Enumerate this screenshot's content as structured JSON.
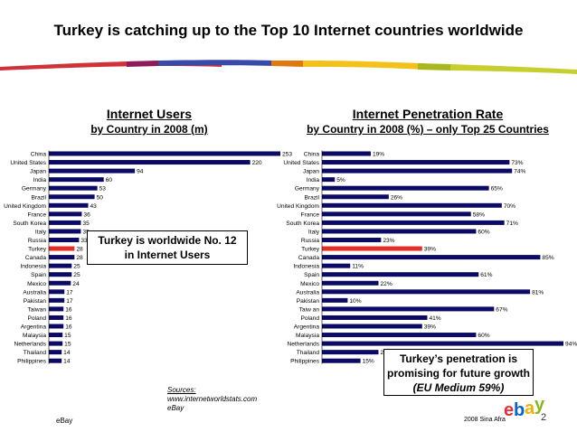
{
  "title": "Turkey is catching up to the Top 10 Internet countries worldwide",
  "colors": {
    "bar": "#0b0b66",
    "highlight": "#e52d27",
    "logo_red": "#e53238",
    "logo_blue": "#0064d2",
    "logo_yellow": "#f5af02",
    "logo_green": "#86b817"
  },
  "chart_data": [
    {
      "type": "bar",
      "orientation": "horizontal",
      "title": "Internet Users",
      "subtitle": "by Country in 2008 (m)",
      "categories": [
        "China",
        "United States",
        "Japan",
        "India",
        "Germany",
        "Brazil",
        "United Kingdom",
        "France",
        "South Korea",
        "Italy",
        "Russia",
        "Turkey",
        "Canada",
        "Indonesia",
        "Spain",
        "Mexico",
        "Australia",
        "Pakistan",
        "Taiwan",
        "Poland",
        "Argentina",
        "Malaysia",
        "Netherlands",
        "Thailand",
        "Philippines"
      ],
      "values": [
        253,
        220,
        94,
        60,
        53,
        50,
        43,
        36,
        35,
        35,
        33,
        28,
        28,
        25,
        25,
        24,
        17,
        17,
        16,
        16,
        16,
        15,
        15,
        14,
        14
      ],
      "labels": [
        "253",
        "220",
        "94",
        "60",
        "53",
        "50",
        "43",
        "36",
        "35",
        "35",
        "33",
        "28",
        "28",
        "25",
        "25",
        "24",
        "17",
        "17",
        "16",
        "16",
        "16",
        "15",
        "15",
        "14",
        "14"
      ],
      "highlight": "Turkey",
      "xlim": [
        0,
        253
      ]
    },
    {
      "type": "bar",
      "orientation": "horizontal",
      "title": "Internet Penetration Rate",
      "subtitle": "by Country in 2008 (%) – only Top 25 Countries",
      "categories": [
        "China",
        "United States",
        "Japan",
        "India",
        "Germany",
        "Brazil",
        "United Kingdom",
        "France",
        "South Korea",
        "Italy",
        "Russia",
        "Turkey",
        "Canada",
        "Indonesia",
        "Spain",
        "Mexico",
        "Australia",
        "Pakistan",
        "Taiw an",
        "Poland",
        "Argentina",
        "Malaysia",
        "Netherlands",
        "Thailand",
        "Philippines"
      ],
      "values": [
        19,
        73,
        74,
        5,
        65,
        26,
        70,
        58,
        71,
        60,
        23,
        39,
        85,
        11,
        61,
        22,
        81,
        10,
        67,
        41,
        39,
        60,
        94,
        22,
        15
      ],
      "labels": [
        "19%",
        "73%",
        "74%",
        "5%",
        "65%",
        "26%",
        "70%",
        "58%",
        "71%",
        "60%",
        "23%",
        "39%",
        "85%",
        "11%",
        "61%",
        "22%",
        "81%",
        "10%",
        "67%",
        "41%",
        "39%",
        "60%",
        "94%",
        "22%",
        "15%"
      ],
      "highlight": "Turkey",
      "xlim": [
        0,
        94
      ]
    }
  ],
  "callout_left": {
    "line1": "Turkey is worldwide No. 12",
    "line2": "in Internet Users"
  },
  "callout_right": {
    "line1": "Turkey’s penetration is",
    "line2": "promising for future growth",
    "line3": "(EU Medium 59%)"
  },
  "sources": {
    "label": "Sources:",
    "line1": "www.internetworldstats.com",
    "line2": "eBay"
  },
  "footer_left": "eBay",
  "footer_right": "2008 Sina Afra",
  "page_number": "2",
  "logo_text": "ebay"
}
